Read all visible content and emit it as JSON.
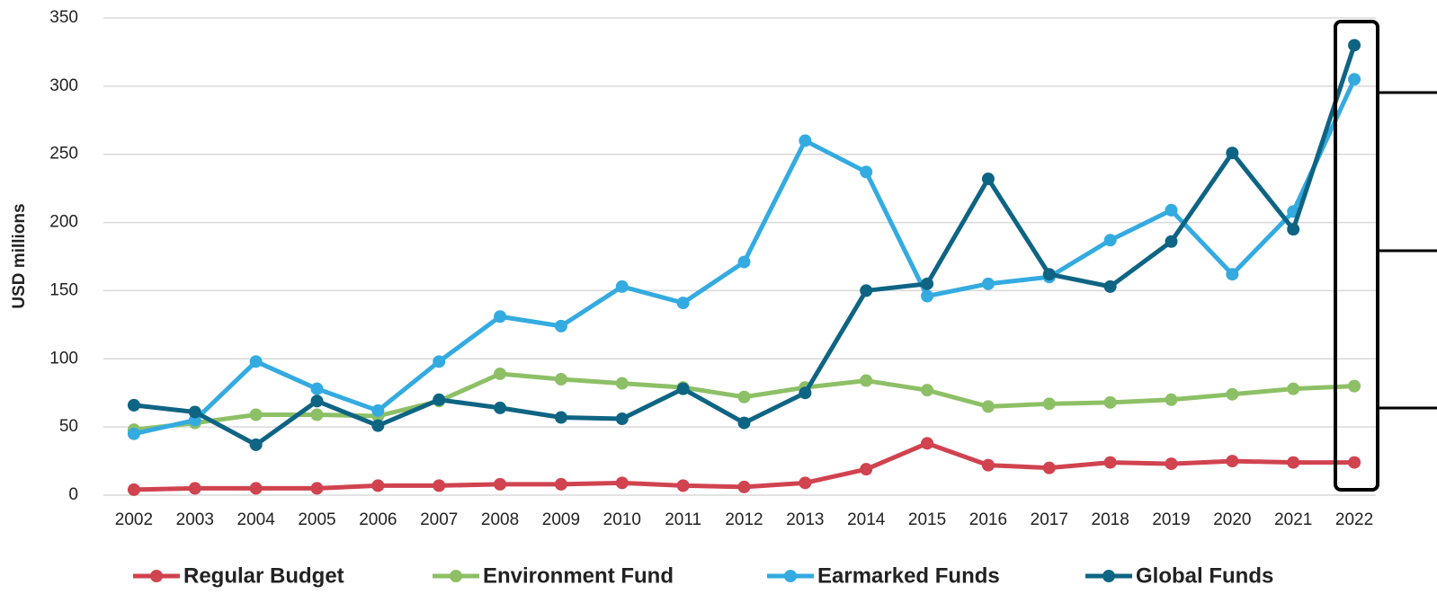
{
  "chart_data": {
    "type": "line",
    "y_label": "USD millions",
    "categories": [
      "2002",
      "2003",
      "2004",
      "2005",
      "2006",
      "2007",
      "2008",
      "2009",
      "2010",
      "2011",
      "2012",
      "2013",
      "2014",
      "2015",
      "2016",
      "2017",
      "2018",
      "2019",
      "2020",
      "2021",
      "2022"
    ],
    "series": [
      {
        "name": "Regular Budget",
        "color": "#d0434f",
        "values": [
          4,
          5,
          5,
          5,
          7,
          7,
          8,
          8,
          9,
          7,
          6,
          9,
          19,
          38,
          22,
          20,
          24,
          23,
          25,
          24,
          24
        ]
      },
      {
        "name": "Environment Fund",
        "color": "#8dc066",
        "values": [
          48,
          53,
          59,
          59,
          58,
          69,
          89,
          85,
          82,
          79,
          72,
          79,
          84,
          77,
          65,
          67,
          68,
          70,
          74,
          78,
          80
        ]
      },
      {
        "name": "Earmarked Funds",
        "color": "#34abe0",
        "values": [
          45,
          55,
          98,
          78,
          62,
          98,
          131,
          124,
          153,
          141,
          171,
          260,
          237,
          146,
          155,
          160,
          187,
          209,
          162,
          208,
          305
        ]
      },
      {
        "name": "Global Funds",
        "color": "#0e6483",
        "values": [
          66,
          61,
          37,
          69,
          51,
          70,
          64,
          57,
          56,
          78,
          53,
          75,
          150,
          155,
          232,
          162,
          153,
          186,
          251,
          195,
          330
        ]
      }
    ],
    "ylim": [
      0,
      350
    ],
    "yticks": [
      0,
      50,
      100,
      150,
      200,
      250,
      300,
      350
    ],
    "grid": true
  }
}
